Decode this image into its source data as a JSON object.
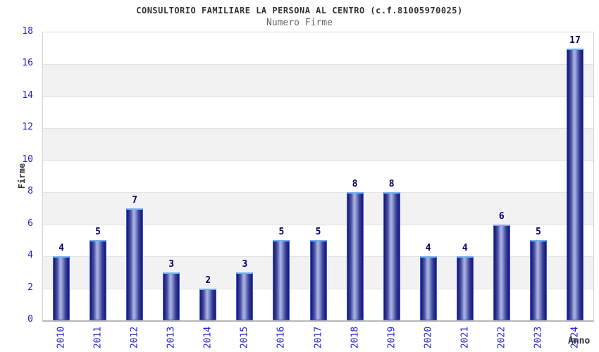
{
  "chart_data": {
    "type": "bar",
    "title": "CONSULTORIO FAMILIARE LA PERSONA AL CENTRO (c.f.81005970025)",
    "subtitle": "Numero Firme",
    "xlabel": "Anno",
    "ylabel": "Firme",
    "categories": [
      "2010",
      "2011",
      "2012",
      "2013",
      "2014",
      "2015",
      "2016",
      "2017",
      "2018",
      "2019",
      "2020",
      "2021",
      "2022",
      "2023",
      "2024"
    ],
    "values": [
      4,
      5,
      7,
      3,
      2,
      3,
      5,
      5,
      8,
      8,
      4,
      4,
      6,
      5,
      17
    ],
    "ylim": [
      0,
      18
    ],
    "ytick_step": 2,
    "yticks": [
      0,
      2,
      4,
      6,
      8,
      10,
      12,
      14,
      16,
      18
    ],
    "grid": "horizontal-bands",
    "legend": "none",
    "colors": {
      "band_even": "#ffffff",
      "band_odd": "#f2f2f2",
      "gridline": "#e2e2e2",
      "plot_border": "#d4d4d4",
      "bar_dark": "#191970",
      "bar_mid": "#3f47a0",
      "bar_highlight": "#aeb5e2",
      "bar_border_side": "#3a5cd8",
      "bar_border_top": "#6fb0f2",
      "tick_label": "#2323cc",
      "value_label": "#000066",
      "title": "#333333",
      "subtitle": "#666666",
      "axis_title": "#333333"
    }
  }
}
